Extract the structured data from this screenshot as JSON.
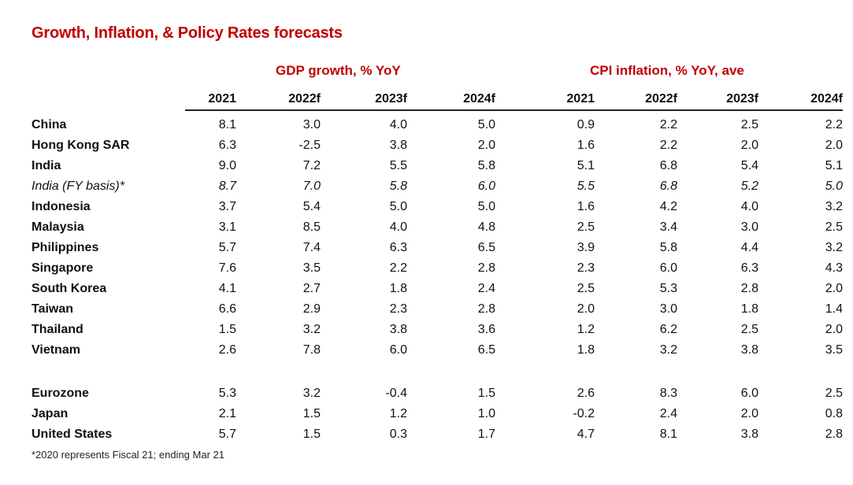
{
  "title": "Growth, Inflation, & Policy Rates forecasts",
  "groups": {
    "gdp": "GDP growth, % YoY",
    "cpi": "CPI inflation, % YoY, ave"
  },
  "columns": [
    "2021",
    "2022f",
    "2023f",
    "2024f",
    "2021",
    "2022f",
    "2023f",
    "2024f"
  ],
  "rows_asia": [
    {
      "name": "China",
      "values": [
        "8.1",
        "3.0",
        "4.0",
        "5.0",
        "0.9",
        "2.2",
        "2.5",
        "2.2"
      ]
    },
    {
      "name": "Hong Kong SAR",
      "values": [
        "6.3",
        "-2.5",
        "3.8",
        "2.0",
        "1.6",
        "2.2",
        "2.0",
        "2.0"
      ]
    },
    {
      "name": "India",
      "values": [
        "9.0",
        "7.2",
        "5.5",
        "5.8",
        "5.1",
        "6.8",
        "5.4",
        "5.1"
      ]
    },
    {
      "name": "India (FY basis)*",
      "italic": true,
      "values": [
        "8.7",
        "7.0",
        "5.8",
        "6.0",
        "5.5",
        "6.8",
        "5.2",
        "5.0"
      ]
    },
    {
      "name": "Indonesia",
      "values": [
        "3.7",
        "5.4",
        "5.0",
        "5.0",
        "1.6",
        "4.2",
        "4.0",
        "3.2"
      ]
    },
    {
      "name": "Malaysia",
      "values": [
        "3.1",
        "8.5",
        "4.0",
        "4.8",
        "2.5",
        "3.4",
        "3.0",
        "2.5"
      ]
    },
    {
      "name": "Philippines",
      "values": [
        "5.7",
        "7.4",
        "6.3",
        "6.5",
        "3.9",
        "5.8",
        "4.4",
        "3.2"
      ]
    },
    {
      "name": "Singapore",
      "values": [
        "7.6",
        "3.5",
        "2.2",
        "2.8",
        "2.3",
        "6.0",
        "6.3",
        "4.3"
      ]
    },
    {
      "name": "South Korea",
      "values": [
        "4.1",
        "2.7",
        "1.8",
        "2.4",
        "2.5",
        "5.3",
        "2.8",
        "2.0"
      ]
    },
    {
      "name": "Taiwan",
      "values": [
        "6.6",
        "2.9",
        "2.3",
        "2.8",
        "2.0",
        "3.0",
        "1.8",
        "1.4"
      ]
    },
    {
      "name": "Thailand",
      "values": [
        "1.5",
        "3.2",
        "3.8",
        "3.6",
        "1.2",
        "6.2",
        "2.5",
        "2.0"
      ]
    },
    {
      "name": "Vietnam",
      "values": [
        "2.6",
        "7.8",
        "6.0",
        "6.5",
        "1.8",
        "3.2",
        "3.8",
        "3.5"
      ]
    }
  ],
  "rows_global": [
    {
      "name": "Eurozone",
      "values": [
        "5.3",
        "3.2",
        "-0.4",
        "1.5",
        "2.6",
        "8.3",
        "6.0",
        "2.5"
      ]
    },
    {
      "name": "Japan",
      "values": [
        "2.1",
        "1.5",
        "1.2",
        "1.0",
        "-0.2",
        "2.4",
        "2.0",
        "0.8"
      ]
    },
    {
      "name": "United States",
      "values": [
        "5.7",
        "1.5",
        "0.3",
        "1.7",
        "4.7",
        "8.1",
        "3.8",
        "2.8"
      ]
    }
  ],
  "footnote": "*2020 represents Fiscal 21; ending Mar 21",
  "colors": {
    "accent": "#c00000",
    "text": "#111111"
  }
}
